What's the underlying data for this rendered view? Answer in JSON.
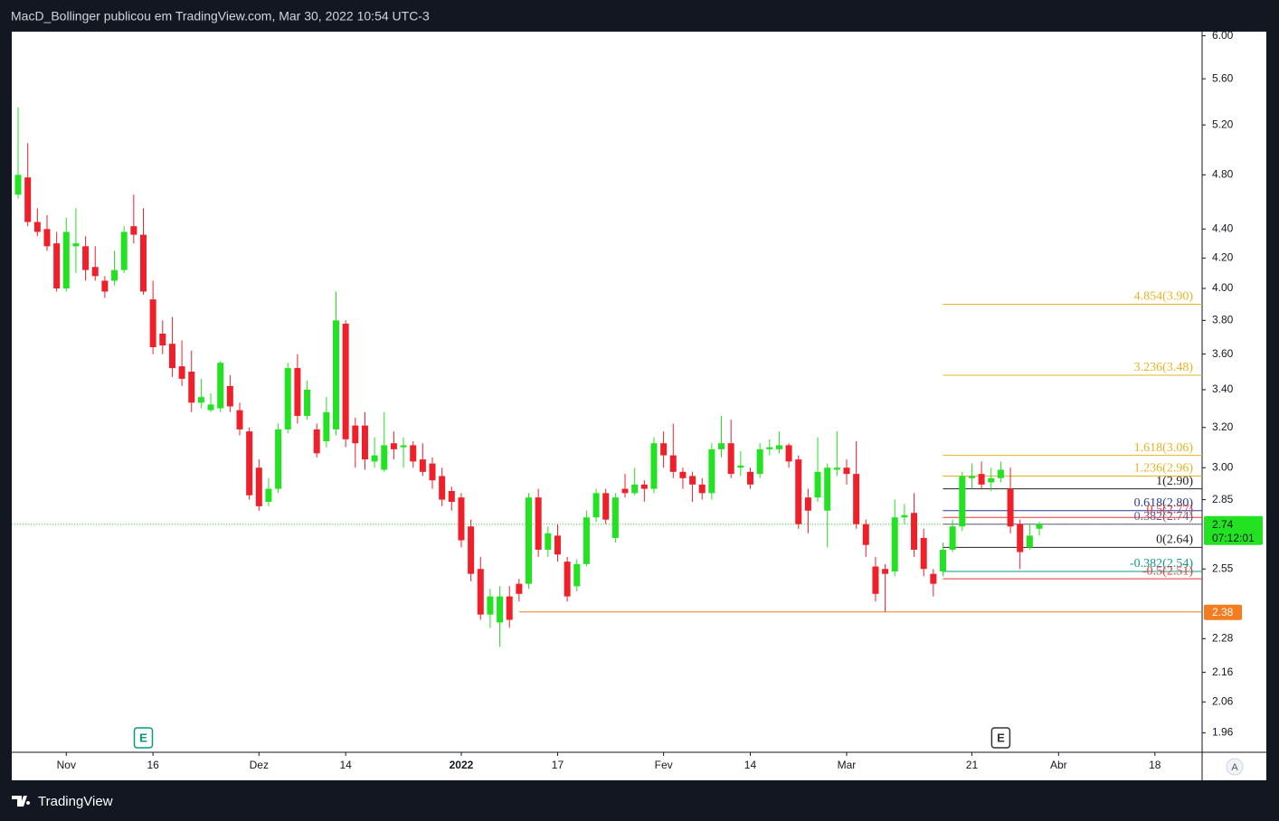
{
  "header": "MacD_Bollinger publicou em TradingView.com, Mar 30, 2022 10:54 UTC-3",
  "footer": "TradingView",
  "chart_data": {
    "type": "candlestick",
    "log_scale": true,
    "up_color": "#22e222",
    "down_color": "#f0202a",
    "open": [
      4.65,
      4.78,
      4.45,
      4.4,
      4.3,
      4.0,
      4.28,
      4.28,
      4.14,
      4.05,
      4.05,
      4.12,
      4.42,
      4.36,
      3.93,
      3.72,
      3.66,
      3.53,
      3.5,
      3.33,
      3.29,
      3.3,
      3.42,
      3.29,
      3.18,
      3.0,
      2.84,
      2.9,
      3.19,
      3.52,
      3.26,
      3.19,
      3.13,
      3.19,
      3.78,
      3.21,
      3.21,
      3.03,
      2.99,
      3.12,
      3.1,
      3.11,
      3.04,
      3.02,
      2.96,
      2.89,
      2.86,
      2.73,
      2.55,
      2.37,
      2.34,
      2.44,
      2.49,
      2.49,
      2.86,
      2.63,
      2.69,
      2.58,
      2.48,
      2.57,
      2.77,
      2.88,
      2.68,
      2.9,
      2.88,
      2.92,
      2.9,
      3.12,
      3.06,
      2.98,
      2.96,
      2.92,
      2.88,
      3.09,
      3.12,
      3.0,
      2.98,
      2.97,
      3.09,
      3.09,
      3.11,
      3.04,
      2.86,
      2.86,
      2.8,
      2.99,
      3.0,
      2.97,
      2.74,
      2.56,
      2.55,
      2.54,
      2.77,
      2.79,
      2.68,
      2.53,
      2.54,
      2.63,
      2.73,
      2.95,
      2.97,
      2.93,
      2.95,
      2.9,
      2.74,
      2.64,
      2.72
    ],
    "high": [
      5.35,
      5.05,
      4.55,
      4.5,
      4.38,
      4.48,
      4.55,
      4.35,
      4.28,
      4.08,
      4.25,
      4.42,
      4.65,
      4.55,
      4.05,
      3.8,
      3.82,
      3.68,
      3.62,
      3.46,
      3.38,
      3.56,
      3.48,
      3.33,
      3.2,
      3.04,
      2.95,
      3.22,
      3.55,
      3.6,
      3.45,
      3.22,
      3.36,
      3.98,
      3.8,
      3.25,
      3.28,
      3.15,
      3.28,
      3.18,
      3.15,
      3.13,
      3.12,
      3.05,
      3.0,
      2.91,
      2.88,
      2.76,
      2.6,
      2.47,
      2.48,
      2.48,
      2.51,
      2.88,
      2.9,
      2.73,
      2.74,
      2.6,
      2.59,
      2.8,
      2.9,
      2.9,
      2.88,
      2.97,
      3.0,
      2.94,
      3.15,
      3.18,
      3.22,
      3.0,
      2.98,
      2.95,
      3.12,
      3.26,
      3.24,
      3.08,
      3.0,
      3.12,
      3.14,
      3.18,
      3.12,
      3.06,
      2.9,
      3.15,
      3.02,
      3.18,
      3.04,
      3.13,
      2.76,
      2.6,
      2.57,
      2.85,
      2.83,
      2.88,
      2.72,
      2.55,
      2.66,
      2.76,
      2.98,
      3.02,
      3.03,
      3.0,
      3.03,
      3.0,
      2.76,
      2.74,
      2.75
    ],
    "low": [
      4.62,
      4.42,
      4.35,
      4.25,
      3.98,
      3.98,
      4.1,
      4.05,
      4.05,
      3.94,
      4.02,
      4.1,
      4.3,
      3.96,
      3.6,
      3.6,
      3.47,
      3.42,
      3.28,
      3.3,
      3.28,
      3.28,
      3.28,
      3.16,
      2.85,
      2.8,
      2.82,
      2.88,
      3.17,
      3.22,
      3.24,
      3.05,
      3.1,
      3.16,
      3.1,
      3.0,
      2.99,
      3.0,
      2.98,
      3.04,
      3.0,
      3.0,
      2.96,
      2.9,
      2.82,
      2.8,
      2.64,
      2.5,
      2.35,
      2.32,
      2.25,
      2.32,
      2.42,
      2.47,
      2.6,
      2.6,
      2.58,
      2.42,
      2.46,
      2.56,
      2.75,
      2.74,
      2.66,
      2.86,
      2.87,
      2.84,
      2.88,
      3.0,
      2.95,
      2.9,
      2.84,
      2.85,
      2.85,
      3.05,
      2.95,
      2.96,
      2.9,
      2.95,
      3.06,
      3.07,
      3.0,
      2.72,
      2.7,
      2.84,
      2.64,
      2.96,
      2.92,
      2.72,
      2.6,
      2.42,
      2.38,
      2.52,
      2.74,
      2.6,
      2.52,
      2.44,
      2.52,
      2.62,
      2.71,
      2.9,
      2.9,
      2.89,
      2.93,
      2.7,
      2.55,
      2.63,
      2.69
    ],
    "close": [
      4.8,
      4.45,
      4.38,
      4.28,
      4.0,
      4.38,
      4.3,
      4.12,
      4.08,
      3.98,
      4.12,
      4.38,
      4.36,
      3.98,
      3.64,
      3.65,
      3.52,
      3.46,
      3.33,
      3.36,
      3.32,
      3.55,
      3.31,
      3.19,
      2.87,
      2.82,
      2.9,
      3.19,
      3.52,
      3.26,
      3.4,
      3.07,
      3.28,
      3.8,
      3.14,
      3.12,
      3.04,
      3.06,
      3.11,
      3.09,
      3.11,
      3.03,
      2.98,
      2.94,
      2.85,
      2.84,
      2.67,
      2.53,
      2.37,
      2.44,
      2.44,
      2.35,
      2.45,
      2.86,
      2.63,
      2.7,
      2.61,
      2.44,
      2.57,
      2.77,
      2.88,
      2.76,
      2.86,
      2.88,
      2.92,
      2.9,
      3.12,
      3.06,
      2.98,
      2.95,
      2.92,
      2.88,
      3.09,
      3.12,
      2.97,
      3.01,
      2.92,
      3.09,
      3.1,
      3.11,
      3.03,
      2.74,
      2.8,
      2.98,
      3.0,
      3.0,
      2.97,
      2.74,
      2.65,
      2.45,
      2.53,
      2.77,
      2.78,
      2.63,
      2.55,
      2.49,
      2.63,
      2.73,
      2.96,
      2.96,
      2.92,
      2.95,
      2.99,
      2.73,
      2.62,
      2.69,
      2.74
    ],
    "xlim": [
      -0.66,
      122.9
    ],
    "xticks": [
      {
        "value": 5,
        "label": "Nov"
      },
      {
        "value": 14,
        "label": "16"
      },
      {
        "value": 25,
        "label": "Dez"
      },
      {
        "value": 34,
        "label": "14"
      },
      {
        "value": 46,
        "label": "2022"
      },
      {
        "value": 56,
        "label": "17"
      },
      {
        "value": 67,
        "label": "Fev"
      },
      {
        "value": 76,
        "label": "14"
      },
      {
        "value": 86,
        "label": "Mar"
      },
      {
        "value": 99,
        "label": "21"
      },
      {
        "value": 108,
        "label": "Abr"
      },
      {
        "value": 118,
        "label": "18"
      }
    ],
    "ylim": [
      1.9,
      6.04
    ],
    "yticks": [
      {
        "value": 6,
        "label": "6.00"
      },
      {
        "value": 5.6,
        "label": "5.60"
      },
      {
        "value": 5.2,
        "label": "5.20"
      },
      {
        "value": 4.8,
        "label": "4.80"
      },
      {
        "value": 4.4,
        "label": "4.40"
      },
      {
        "value": 4.2,
        "label": "4.20"
      },
      {
        "value": 4,
        "label": "4.00"
      },
      {
        "value": 3.8,
        "label": "3.80"
      },
      {
        "value": 3.6,
        "label": "3.60"
      },
      {
        "value": 3.4,
        "label": "3.40"
      },
      {
        "value": 3.2,
        "label": "3.20"
      },
      {
        "value": 3,
        "label": "3.00"
      },
      2.85,
      2.55,
      2.28,
      2.16,
      2.06,
      1.96
    ],
    "fib_start": 96,
    "fib_levels": [
      {
        "label": "4.854(3.90)",
        "price": 3.9,
        "color": "#e6b422"
      },
      {
        "label": "3.236(3.48)",
        "price": 3.48,
        "color": "#e6b422"
      },
      {
        "label": "1.618(3.06)",
        "price": 3.06,
        "color": "#e6b422"
      },
      {
        "label": "1.236(2.96)",
        "price": 2.96,
        "color": "#e6b422"
      },
      {
        "label": "1(2.90)",
        "price": 2.9,
        "color": "#222222"
      },
      {
        "label": "0.618(2.80)",
        "price": 2.8,
        "color": "#2b3990"
      },
      {
        "label": "0.5(2.77)",
        "price": 2.77,
        "color": "#e53935"
      },
      {
        "label": "0.382(2.74)",
        "price": 2.74,
        "color": "#6a5a86"
      },
      {
        "label": "0(2.64)",
        "price": 2.64,
        "color": "#222222"
      },
      {
        "label": "-0.382(2.54)",
        "price": 2.54,
        "color": "#12988a"
      },
      {
        "label": "-0.5(2.51)",
        "price": 2.51,
        "color": "#e53935"
      }
    ],
    "support": {
      "price": 2.38,
      "start": 52,
      "color": "#f57c1f"
    },
    "last_price": 2.74,
    "last_price_color": "#22e222",
    "countdown": "07:12:01",
    "events": [
      {
        "label": "E",
        "x": 13,
        "color": "#089981"
      },
      {
        "label": "E",
        "x": 102,
        "color": "#333333"
      }
    ],
    "corner_button": "A"
  }
}
